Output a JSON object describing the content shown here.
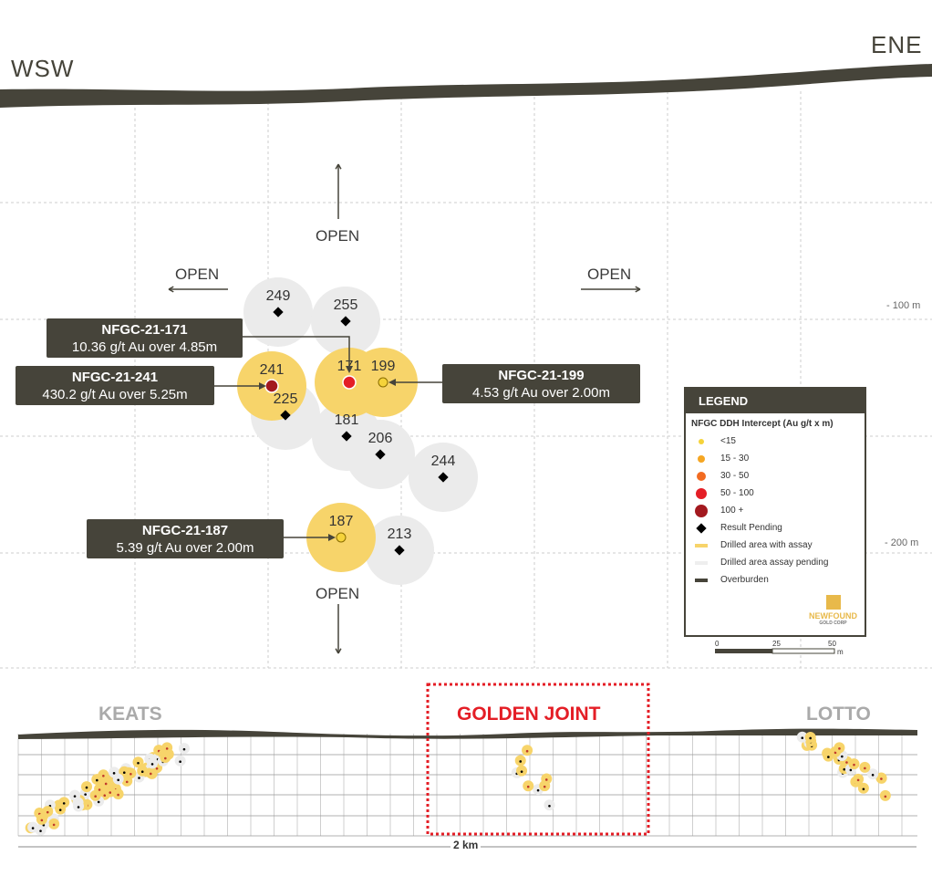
{
  "directions": {
    "left": "WSW",
    "right": "ENE"
  },
  "open_labels": {
    "top": "OPEN",
    "left": "OPEN",
    "right": "OPEN",
    "bottom": "OPEN"
  },
  "depth_labels": [
    "- 100 m",
    "- 200 m"
  ],
  "holes": [
    {
      "id": "249",
      "status": "pending"
    },
    {
      "id": "255",
      "status": "pending"
    },
    {
      "id": "241",
      "status": "assay",
      "grade": "100 +"
    },
    {
      "id": "225",
      "status": "pending"
    },
    {
      "id": "171",
      "status": "assay",
      "grade": "50 - 100"
    },
    {
      "id": "199",
      "status": "assay",
      "grade": "<15"
    },
    {
      "id": "181",
      "status": "pending"
    },
    {
      "id": "206",
      "status": "pending"
    },
    {
      "id": "244",
      "status": "pending"
    },
    {
      "id": "187",
      "status": "assay",
      "grade": "<15"
    },
    {
      "id": "213",
      "status": "pending"
    }
  ],
  "callouts": [
    {
      "hole": "NFGC-21-171",
      "text": "10.36 g/t Au over 4.85m"
    },
    {
      "hole": "NFGC-21-241",
      "text": "430.2 g/t Au over 5.25m"
    },
    {
      "hole": "NFGC-21-199",
      "text": "4.53 g/t Au over 2.00m"
    },
    {
      "hole": "NFGC-21-187",
      "text": "5.39 g/t Au over 2.00m"
    }
  ],
  "legend": {
    "title": "LEGEND",
    "subtitle": "NFGC DDH Intercept (Au g/t x m)",
    "items": [
      {
        "label": "<15",
        "color": "#f5d33a"
      },
      {
        "label": "15 - 30",
        "color": "#f5a623"
      },
      {
        "label": "30 - 50",
        "color": "#f26b21"
      },
      {
        "label": "50 - 100",
        "color": "#e41e26"
      },
      {
        "label": "100 +",
        "color": "#a3191f"
      },
      {
        "label": "Result Pending",
        "color": "#000000"
      },
      {
        "label": "Drilled area with assay",
        "color": "#f7d46a"
      },
      {
        "label": "Drilled area assay pending",
        "color": "#eeeeee"
      },
      {
        "label": "Overburden",
        "color": "#46443a"
      }
    ],
    "logo": {
      "name": "NEWFOUND",
      "sub": "GOLD CORP"
    },
    "scale": {
      "ticks": [
        "0",
        "25",
        "50"
      ],
      "unit": "m"
    }
  },
  "overview": {
    "areas": [
      "KEATS",
      "GOLDEN JOINT",
      "LOTTO"
    ],
    "length": "2 km"
  },
  "colors": {
    "overburden": "#46443a",
    "assay": "#f7d46a",
    "pending": "#ebebeb",
    "highlight": "#e41e26"
  }
}
